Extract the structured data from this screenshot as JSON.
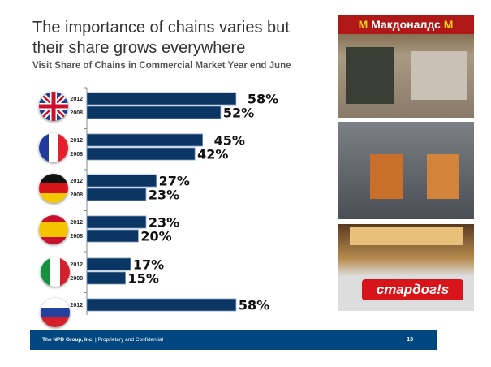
{
  "title": "The importance of chains varies but their share grows everywhere",
  "subtitle": "Visit Share of Chains in Commercial Market Year end June",
  "chart_data": {
    "type": "bar",
    "orientation": "horizontal",
    "title": "Visit Share of Chains in Commercial Market Year end June",
    "categories": [
      "UK",
      "France",
      "Germany",
      "Spain",
      "Italy",
      "Russia"
    ],
    "series": [
      {
        "name": "2012",
        "values": [
          58,
          45,
          27,
          23,
          17,
          58
        ]
      },
      {
        "name": "2008",
        "values": [
          52,
          42,
          23,
          20,
          15,
          null
        ]
      }
    ],
    "value_format": "%",
    "xlim": [
      0,
      60
    ],
    "bar_color": "#0b3563"
  },
  "photos": {
    "sign1": "Макдоналдс",
    "sign3": "стардог!s"
  },
  "footer": {
    "company": "The NPD Group, Inc.",
    "separator": "|",
    "confidential": "Proprietary and Confidential",
    "page": "13"
  }
}
